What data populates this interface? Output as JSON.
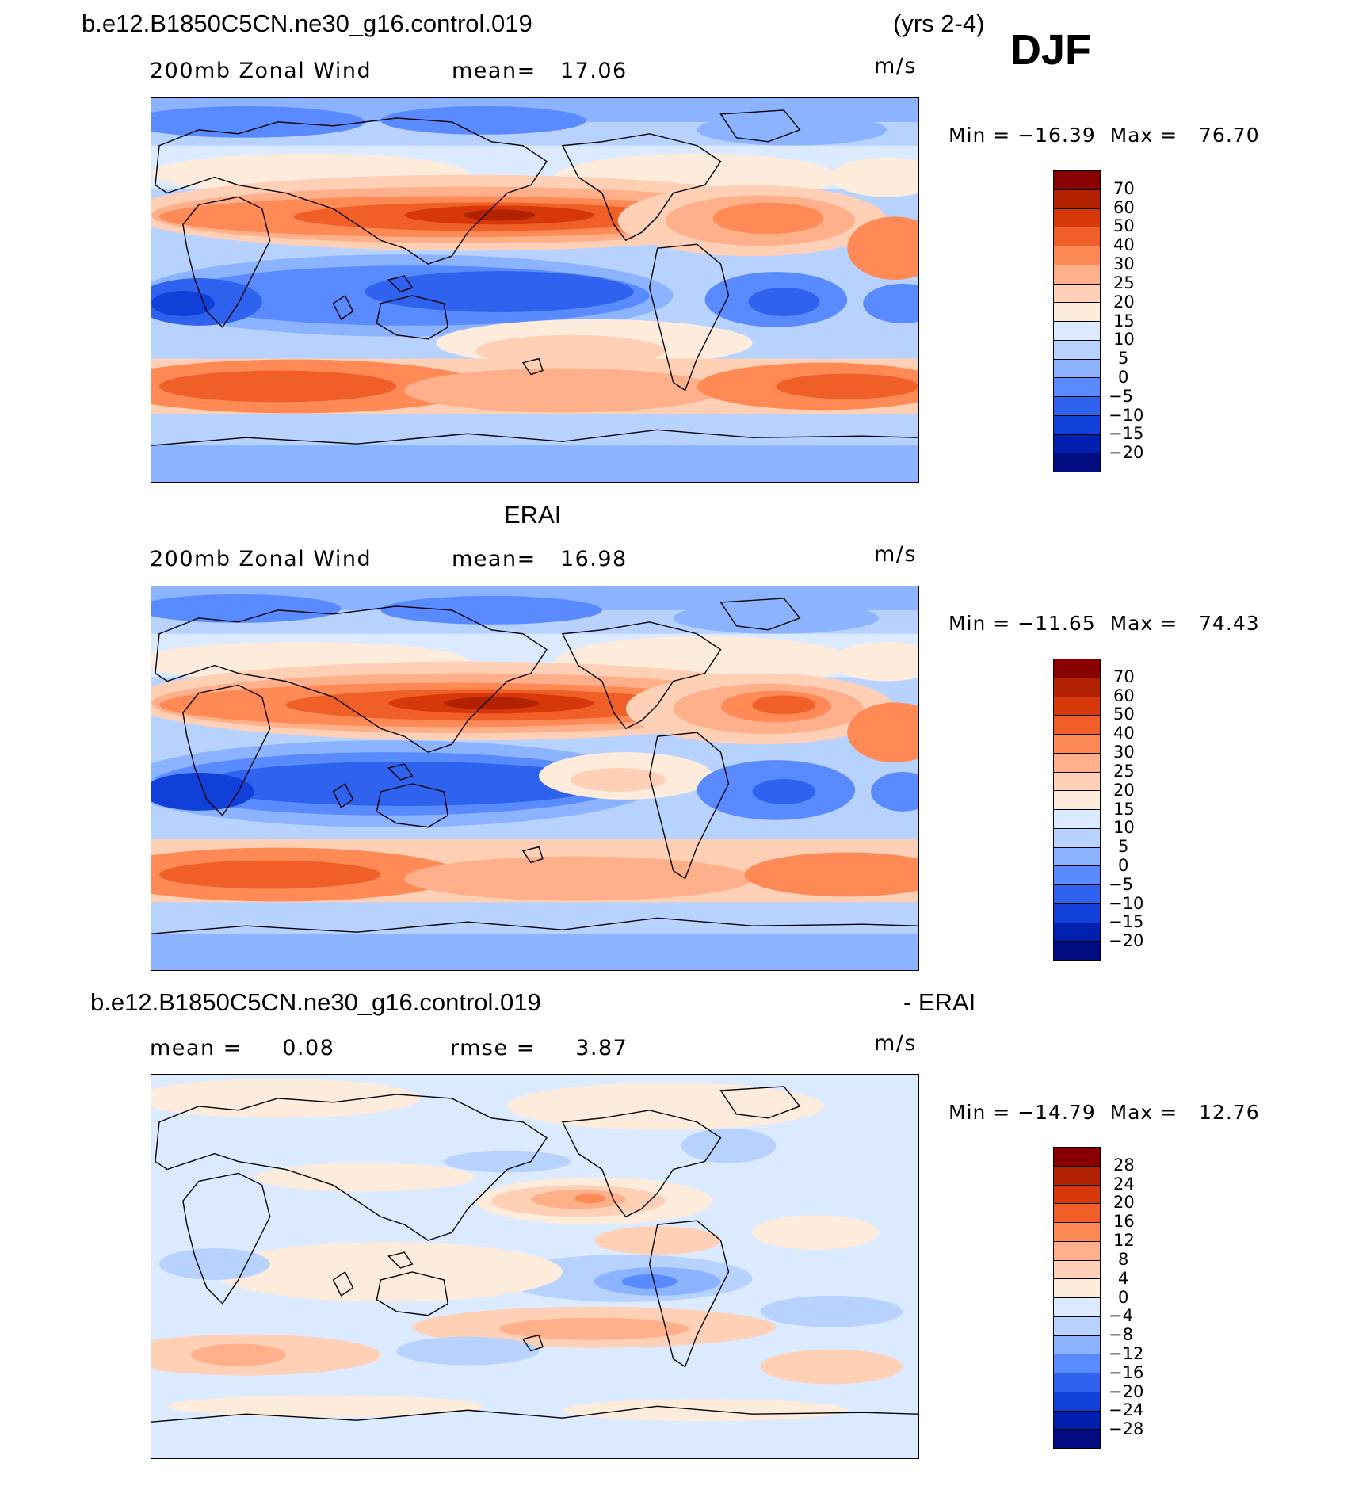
{
  "header": {
    "case_title": "b.e12.B1850C5CN.ne30_g16.control.019",
    "years": "(yrs 2-4)",
    "season": "DJF"
  },
  "panels": [
    {
      "title": "",
      "field_label": "200mb Zonal Wind",
      "stat1": "mean=   17.06",
      "units": "m/s",
      "minmax": "Min = −16.39  Max =   76.70",
      "colorbar_labels": [
        "70",
        "60",
        "50",
        "40",
        "30",
        "25",
        "20",
        "15",
        "10",
        "5",
        "0",
        "−5",
        "−10",
        "−15",
        "−20"
      ]
    },
    {
      "title": "ERAI",
      "field_label": "200mb Zonal Wind",
      "stat1": "mean=   16.98",
      "units": "m/s",
      "minmax": "Min = −11.65  Max =   74.43",
      "colorbar_labels": [
        "70",
        "60",
        "50",
        "40",
        "30",
        "25",
        "20",
        "15",
        "10",
        "5",
        "0",
        "−5",
        "−10",
        "−15",
        "−20"
      ]
    },
    {
      "title_left": "b.e12.B1850C5CN.ne30_g16.control.019",
      "title_right": "- ERAI",
      "field_label": "mean =     0.08",
      "stat1": "rmse =     3.87",
      "units": "m/s",
      "minmax": "Min = −14.79  Max =   12.76",
      "colorbar_labels": [
        "28",
        "24",
        "20",
        "16",
        "12",
        "8",
        "4",
        "0",
        "−4",
        "−8",
        "−12",
        "−16",
        "−20",
        "−24",
        "−28"
      ]
    }
  ],
  "colors": {
    "wind_scale": [
      "#880000",
      "#b22200",
      "#d6380a",
      "#f05f28",
      "#ff8a55",
      "#ffb08a",
      "#ffd0b5",
      "#fdebdc",
      "#dbeaff",
      "#b8d2ff",
      "#8cb3ff",
      "#5a8aff",
      "#2f62ee",
      "#1040d8",
      "#0020b0",
      "#000c80"
    ],
    "diff_scale": [
      "#880000",
      "#b22200",
      "#d6380a",
      "#f05f28",
      "#ff8a55",
      "#ffb08a",
      "#ffd0b5",
      "#fdebdc",
      "#dbeaff",
      "#b8d2ff",
      "#8cb3ff",
      "#5a8aff",
      "#2f62ee",
      "#1040d8",
      "#0020b0",
      "#000c80"
    ]
  }
}
